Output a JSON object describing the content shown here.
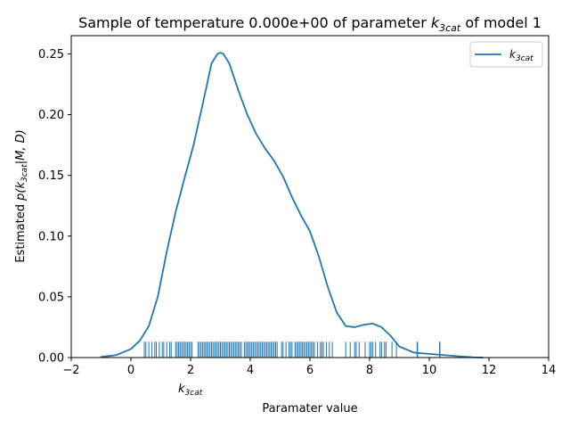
{
  "chart_data": {
    "type": "line",
    "title": "Sample of temperature 0.000e+00 of parameter k_3cat of model 1",
    "title_parts": {
      "prefix": "Sample of temperature 0.000e+00 of parameter ",
      "symbol_main": "k",
      "symbol_sub": "3cat",
      "suffix": " of model 1"
    },
    "xlabel": "Paramater value",
    "ylabel": "Estimated p(k_3cat|M, D)",
    "ylabel_parts": {
      "prefix": "Estimated ",
      "symbol_open": "p(k",
      "symbol_sub": "3cat",
      "symbol_close": "|M, D)"
    },
    "secondary_xlabel": {
      "main": "k",
      "sub": "3cat"
    },
    "xlim": [
      -2,
      14
    ],
    "ylim": [
      0,
      0.265
    ],
    "x_ticks": [
      -2,
      0,
      2,
      4,
      6,
      8,
      10,
      12,
      14
    ],
    "y_ticks": [
      0.0,
      0.05,
      0.1,
      0.15,
      0.2,
      0.25
    ],
    "x_tick_labels": [
      "−2",
      "0",
      "2",
      "4",
      "6",
      "8",
      "10",
      "12",
      "14"
    ],
    "y_tick_labels": [
      "0.00",
      "0.05",
      "0.10",
      "0.15",
      "0.20",
      "0.25"
    ],
    "grid": false,
    "legend": {
      "placement": "top-right",
      "entries": [
        {
          "main": "k",
          "sub": "3cat"
        }
      ]
    },
    "series": [
      {
        "name": "k_3cat",
        "color": "#1f77b4",
        "x": [
          -1.0,
          -0.5,
          0.0,
          0.3,
          0.6,
          0.9,
          1.2,
          1.5,
          1.8,
          2.1,
          2.4,
          2.7,
          2.9,
          3.0,
          3.1,
          3.3,
          3.6,
          3.9,
          4.2,
          4.5,
          4.8,
          5.1,
          5.4,
          5.7,
          6.0,
          6.3,
          6.6,
          6.9,
          7.2,
          7.5,
          7.8,
          8.1,
          8.4,
          8.7,
          9.0,
          9.5,
          10.0,
          10.5,
          11.0,
          11.5,
          11.8
        ],
        "y": [
          0.0005,
          0.002,
          0.007,
          0.014,
          0.026,
          0.05,
          0.087,
          0.12,
          0.148,
          0.175,
          0.208,
          0.242,
          0.25,
          0.251,
          0.25,
          0.242,
          0.22,
          0.2,
          0.184,
          0.172,
          0.162,
          0.149,
          0.132,
          0.117,
          0.104,
          0.083,
          0.058,
          0.037,
          0.026,
          0.025,
          0.027,
          0.028,
          0.025,
          0.018,
          0.009,
          0.004,
          0.003,
          0.002,
          0.001,
          0.0002,
          0.0
        ]
      }
    ],
    "rug": {
      "color": "#1f77b4",
      "short_height": 0.013,
      "long_height": 0.013,
      "values": [
        0.45,
        0.5,
        0.6,
        0.7,
        0.8,
        0.85,
        0.95,
        1.05,
        1.1,
        1.2,
        1.3,
        1.35,
        1.5,
        1.55,
        1.6,
        1.65,
        1.7,
        1.75,
        1.8,
        1.85,
        1.9,
        1.95,
        2.0,
        2.05,
        2.25,
        2.3,
        2.35,
        2.4,
        2.45,
        2.5,
        2.55,
        2.6,
        2.65,
        2.7,
        2.75,
        2.8,
        2.85,
        2.9,
        2.95,
        3.0,
        3.05,
        3.1,
        3.15,
        3.2,
        3.25,
        3.3,
        3.35,
        3.4,
        3.45,
        3.5,
        3.55,
        3.6,
        3.65,
        3.7,
        3.8,
        3.85,
        3.9,
        3.95,
        4.0,
        4.05,
        4.1,
        4.15,
        4.2,
        4.25,
        4.3,
        4.35,
        4.4,
        4.45,
        4.5,
        4.55,
        4.6,
        4.65,
        4.7,
        4.75,
        4.8,
        4.85,
        4.9,
        5.05,
        5.1,
        5.2,
        5.3,
        5.35,
        5.4,
        5.5,
        5.55,
        5.6,
        5.65,
        5.7,
        5.75,
        5.8,
        5.85,
        5.9,
        5.95,
        6.0,
        6.05,
        6.1,
        6.15,
        6.25,
        6.35,
        6.4,
        6.45,
        6.55,
        6.65,
        6.75,
        7.2,
        7.35,
        7.5,
        7.55,
        7.65,
        7.85,
        8.0,
        8.05,
        8.1,
        8.2,
        8.35,
        8.4,
        8.5,
        8.55,
        8.75,
        8.9
      ],
      "tall_values": [
        9.6,
        10.35
      ]
    }
  }
}
